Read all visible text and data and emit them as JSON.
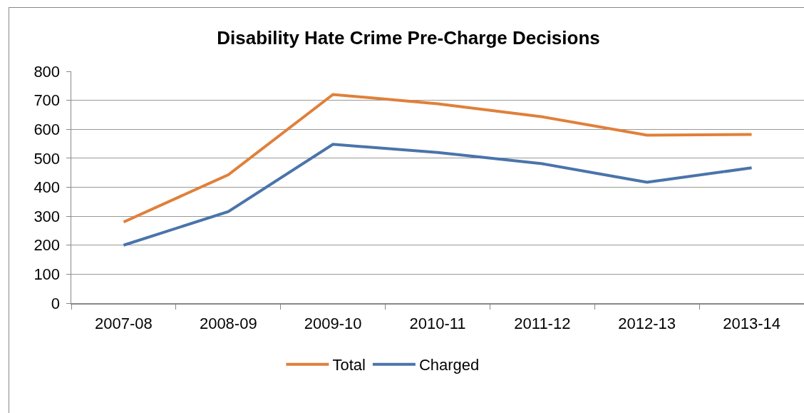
{
  "chart_data": {
    "type": "line",
    "title": "Disability Hate Crime Pre-Charge Decisions",
    "categories": [
      "2007-08",
      "2008-09",
      "2009-10",
      "2010-11",
      "2011-12",
      "2012-13",
      "2013-14"
    ],
    "series": [
      {
        "name": "Total",
        "color": "#e0803a",
        "values": [
          280,
          443,
          720,
          688,
          643,
          580,
          582
        ]
      },
      {
        "name": "Charged",
        "color": "#4a74aa",
        "values": [
          200,
          316,
          548,
          520,
          481,
          417,
          467
        ]
      }
    ],
    "ylim": [
      0,
      800
    ],
    "yticks": [
      0,
      100,
      200,
      300,
      400,
      500,
      600,
      700,
      800
    ],
    "grid": "y",
    "legend": "bottom"
  }
}
